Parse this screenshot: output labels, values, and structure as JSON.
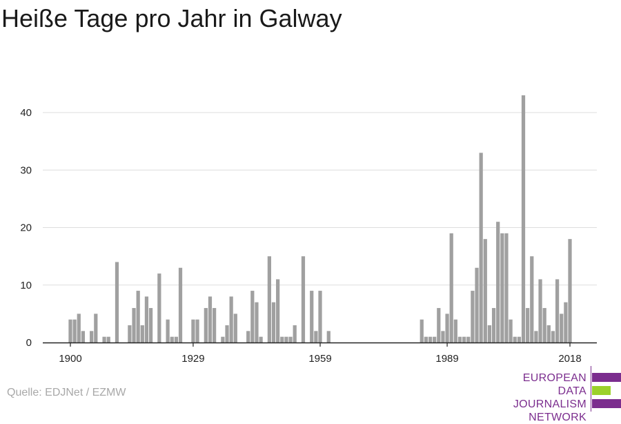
{
  "title": "Heiße Tage pro Jahr in Galway",
  "source": "Quelle: EDJNet / EZMW",
  "logo": {
    "lines": [
      "EUROPEAN",
      "DATA JOURNALISM",
      "NETWORK"
    ],
    "colors": {
      "purple": "#7b2d8e",
      "green": "#9bd12b"
    }
  },
  "colors": {
    "bar": "#a0a0a0",
    "grid": "#dddddd",
    "axis": "#222222"
  },
  "chart_data": {
    "type": "bar",
    "x_ticks": [
      1900,
      1929,
      1959,
      1989,
      2018
    ],
    "y_ticks": [
      0,
      10,
      20,
      30,
      40
    ],
    "ylim": [
      0,
      45
    ],
    "xlim": [
      1900,
      2020
    ],
    "grid": true,
    "series": [
      {
        "x": [
          1900,
          1901,
          1902,
          1903,
          1905,
          1906,
          1908,
          1909,
          1911,
          1914,
          1915,
          1916,
          1917,
          1918,
          1919,
          1921,
          1923,
          1924,
          1925,
          1926,
          1929,
          1930,
          1932,
          1933,
          1934,
          1936,
          1937,
          1938,
          1939,
          1942,
          1943,
          1944,
          1945,
          1947,
          1948,
          1949,
          1950,
          1951,
          1952,
          1953,
          1955,
          1957,
          1958,
          1959,
          1961,
          1983,
          1984,
          1985,
          1986,
          1987,
          1988,
          1989,
          1990,
          1991,
          1992,
          1993,
          1994,
          1995,
          1996,
          1997,
          1998,
          1999,
          2000,
          2001,
          2002,
          2003,
          2004,
          2005,
          2006,
          2007,
          2008,
          2009,
          2010,
          2011,
          2012,
          2013,
          2014,
          2015,
          2016,
          2017,
          2018
        ],
        "values": [
          4,
          4,
          5,
          2,
          2,
          5,
          1,
          1,
          14,
          3,
          6,
          9,
          3,
          8,
          6,
          12,
          4,
          1,
          1,
          13,
          4,
          4,
          6,
          8,
          6,
          1,
          3,
          8,
          5,
          2,
          9,
          7,
          1,
          15,
          7,
          11,
          1,
          1,
          1,
          3,
          15,
          9,
          2,
          9,
          2,
          4,
          1,
          1,
          1,
          6,
          2,
          5,
          19,
          4,
          1,
          1,
          1,
          9,
          13,
          33,
          18,
          3,
          6,
          21,
          19,
          19,
          4,
          1,
          1,
          43,
          6,
          15,
          2,
          11,
          6,
          3,
          2,
          11,
          5,
          7,
          18
        ]
      }
    ]
  }
}
